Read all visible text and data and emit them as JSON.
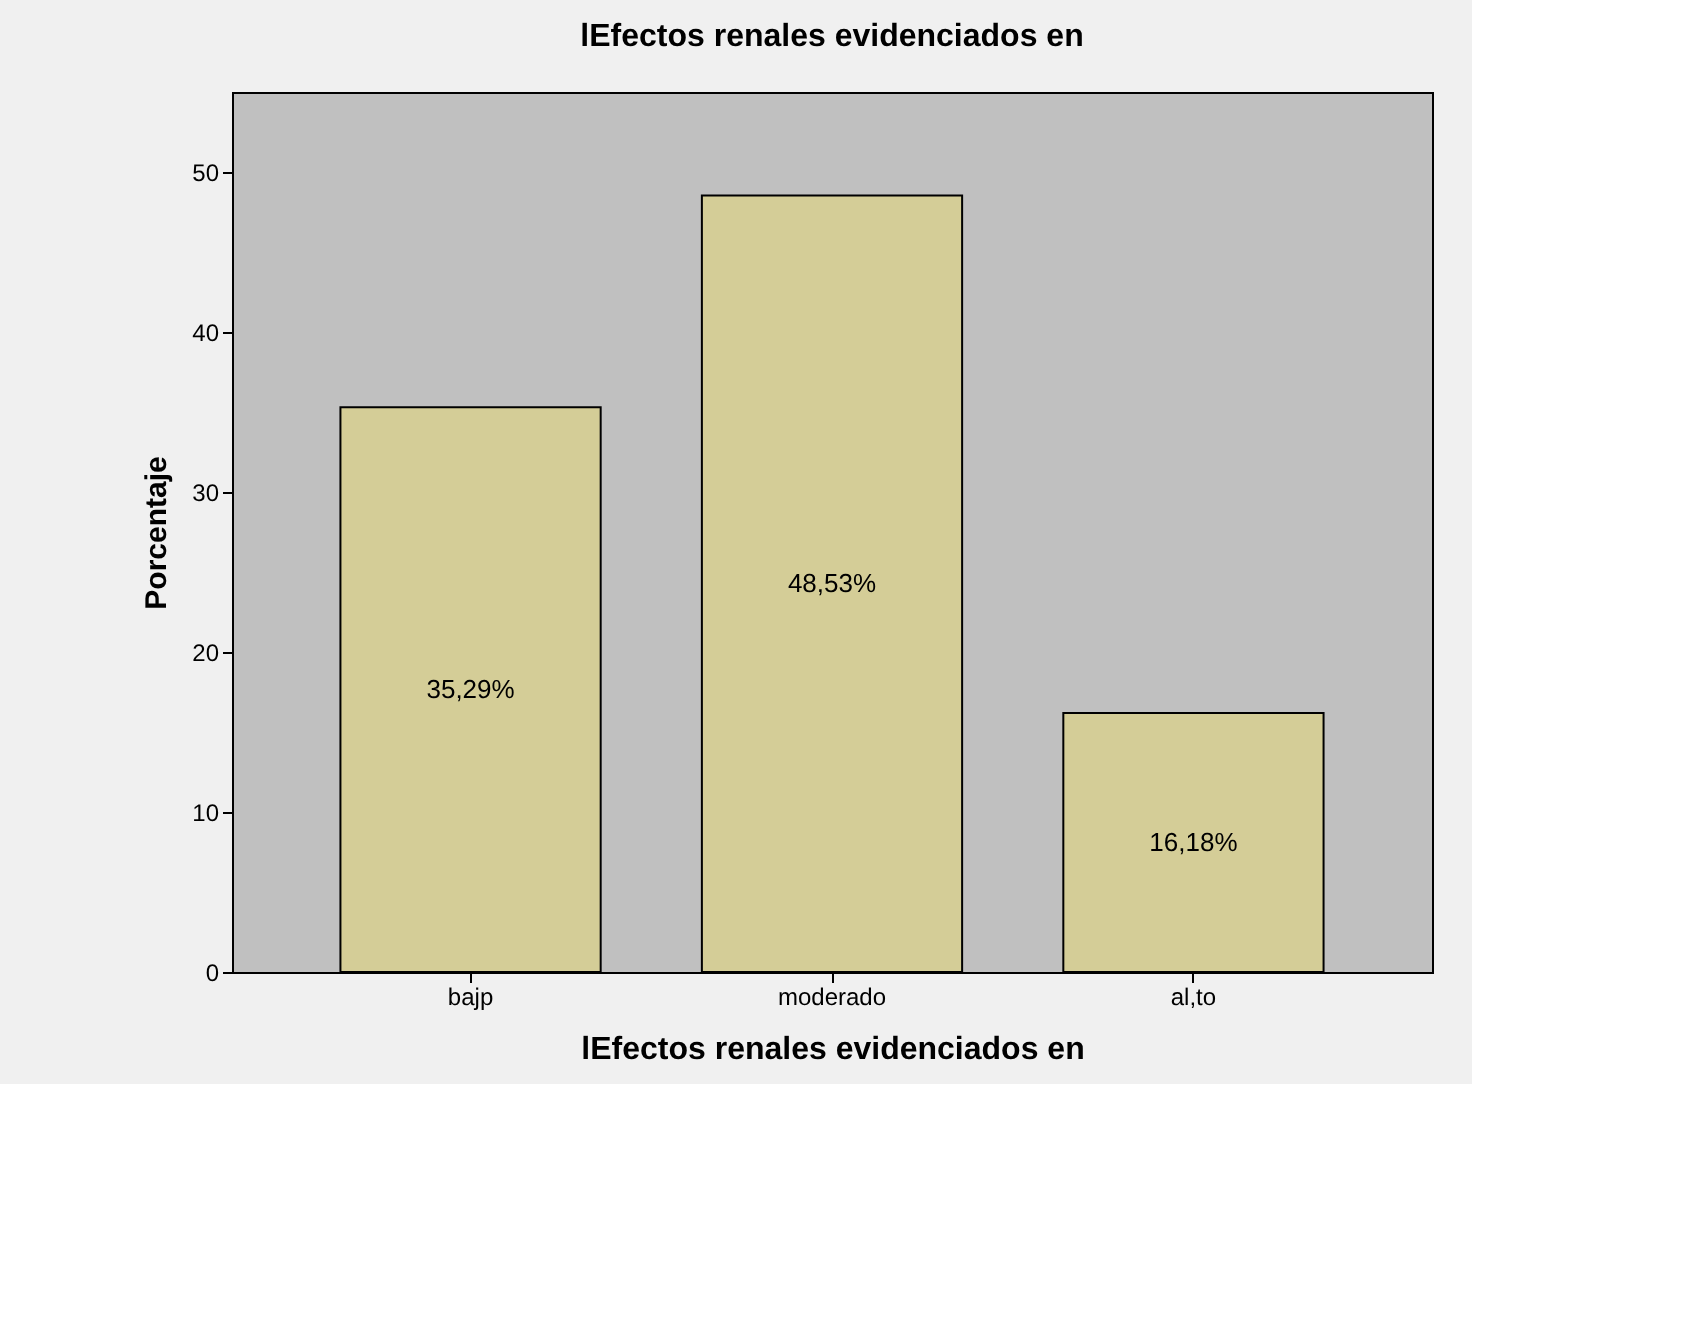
{
  "chart_data": {
    "type": "bar",
    "title": "lEfectos renales evidenciados en",
    "xlabel": "lEfectos renales evidenciados en",
    "ylabel": "Porcentaje",
    "categories": [
      "bajp",
      "moderado",
      "al,to"
    ],
    "values": [
      35.29,
      48.53,
      16.18
    ],
    "value_labels": [
      "35,29%",
      "48,53%",
      "16,18%"
    ],
    "color": "#d4cd97",
    "ylim": [
      0,
      55
    ],
    "yticks": [
      0,
      10,
      20,
      30,
      40,
      50
    ],
    "grid": false
  }
}
